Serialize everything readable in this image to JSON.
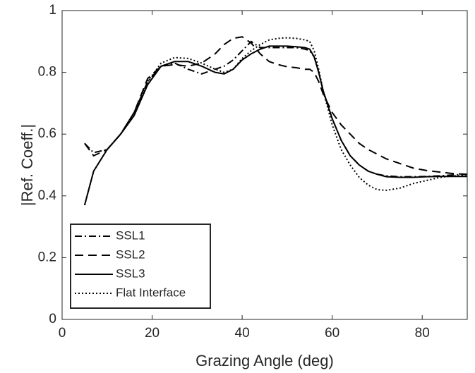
{
  "chart_data": {
    "type": "line",
    "xlabel": "Grazing Angle (deg)",
    "ylabel": "|Ref. Coeff.|",
    "xlim": [
      0,
      90
    ],
    "ylim": [
      0,
      1
    ],
    "xticks": [
      0,
      20,
      40,
      60,
      80
    ],
    "yticks": [
      0,
      0.2,
      0.4,
      0.6,
      0.8,
      1
    ],
    "legend": "lower left",
    "x": [
      5,
      7,
      10,
      13,
      16,
      19,
      22,
      25,
      28,
      31,
      34,
      36,
      38,
      40,
      42,
      44,
      46,
      48,
      50,
      52,
      54,
      55,
      56,
      57,
      58,
      60,
      62,
      64,
      66,
      68,
      70,
      72,
      75,
      78,
      81,
      84,
      87,
      90
    ],
    "series": [
      {
        "name": "SSL1",
        "color": "#000000",
        "line_style": "dashdot",
        "values": [
          0.57,
          0.54,
          0.55,
          0.6,
          0.67,
          0.77,
          0.82,
          0.83,
          0.81,
          0.795,
          0.81,
          0.82,
          0.84,
          0.87,
          0.9,
          0.88,
          0.88,
          0.88,
          0.88,
          0.88,
          0.875,
          0.87,
          0.85,
          0.8,
          0.74,
          0.65,
          0.58,
          0.53,
          0.5,
          0.48,
          0.47,
          0.465,
          0.462,
          0.462,
          0.463,
          0.465,
          0.468,
          0.47
        ]
      },
      {
        "name": "SSL2",
        "color": "#000000",
        "line_style": "dashed",
        "values": [
          0.57,
          0.53,
          0.55,
          0.6,
          0.67,
          0.78,
          0.82,
          0.825,
          0.82,
          0.83,
          0.86,
          0.89,
          0.91,
          0.915,
          0.895,
          0.86,
          0.835,
          0.825,
          0.818,
          0.815,
          0.81,
          0.81,
          0.8,
          0.77,
          0.73,
          0.67,
          0.63,
          0.6,
          0.57,
          0.55,
          0.535,
          0.52,
          0.505,
          0.49,
          0.482,
          0.477,
          0.472,
          0.47
        ]
      },
      {
        "name": "SSL3",
        "color": "#000000",
        "line_style": "solid",
        "values": [
          0.37,
          0.48,
          0.55,
          0.6,
          0.66,
          0.76,
          0.82,
          0.835,
          0.835,
          0.82,
          0.8,
          0.795,
          0.81,
          0.84,
          0.86,
          0.875,
          0.885,
          0.885,
          0.885,
          0.883,
          0.88,
          0.875,
          0.85,
          0.8,
          0.74,
          0.65,
          0.58,
          0.53,
          0.5,
          0.48,
          0.47,
          0.462,
          0.46,
          0.46,
          0.462,
          0.463,
          0.463,
          0.463
        ]
      },
      {
        "name": "Flat Interface",
        "color": "#000000",
        "line_style": "dotted",
        "values": [
          0.37,
          0.48,
          0.55,
          0.6,
          0.66,
          0.77,
          0.83,
          0.848,
          0.845,
          0.83,
          0.81,
          0.8,
          0.81,
          0.845,
          0.87,
          0.89,
          0.905,
          0.91,
          0.912,
          0.91,
          0.905,
          0.9,
          0.87,
          0.81,
          0.74,
          0.63,
          0.55,
          0.5,
          0.46,
          0.435,
          0.42,
          0.418,
          0.425,
          0.44,
          0.45,
          0.46,
          0.465,
          0.465
        ]
      }
    ]
  }
}
